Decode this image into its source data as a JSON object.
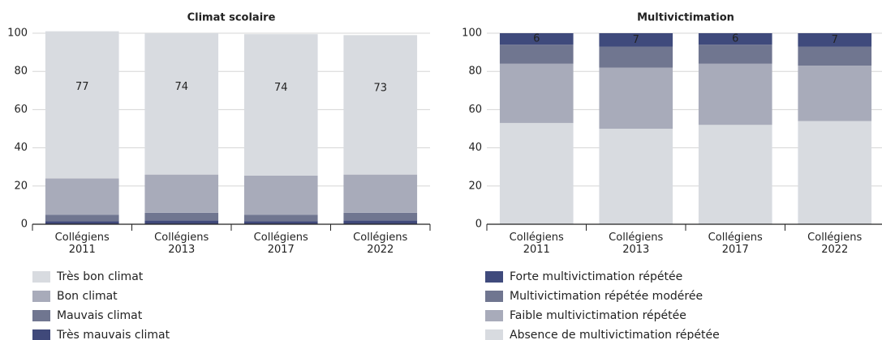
{
  "chart_data": [
    {
      "type": "bar",
      "stacked": true,
      "title": "Climat scolaire",
      "categories": [
        "Collégiens\n2011",
        "Collégiens\n2013",
        "Collégiens\n2017",
        "Collégiens\n2022"
      ],
      "ylim": [
        0,
        100
      ],
      "yticks": [
        0,
        20,
        40,
        60,
        80,
        100
      ],
      "grid": true,
      "series": [
        {
          "name": "Très mauvais climat",
          "color": "#40497a",
          "values": [
            1.5,
            2,
            1.5,
            2
          ]
        },
        {
          "name": "Mauvais climat",
          "color": "#707690",
          "values": [
            3.5,
            4,
            3.5,
            4
          ]
        },
        {
          "name": "Bon climat",
          "color": "#a8abba",
          "values": [
            19,
            20,
            20.5,
            20
          ]
        },
        {
          "name": "Très bon climat",
          "color": "#d8dbe0",
          "values": [
            77,
            74,
            74,
            73
          ],
          "show_values": true
        }
      ]
    },
    {
      "type": "bar",
      "stacked": true,
      "title": "Multivictimation",
      "categories": [
        "Collégiens\n2011",
        "Collégiens\n2013",
        "Collégiens\n2017",
        "Collégiens\n2022"
      ],
      "ylim": [
        0,
        100
      ],
      "yticks": [
        0,
        20,
        40,
        60,
        80,
        100
      ],
      "grid": true,
      "series": [
        {
          "name": "Absence de multivictimation répétée",
          "color": "#d8dbe0",
          "values": [
            53,
            50,
            52,
            54
          ]
        },
        {
          "name": "Faible multivictimation répétée",
          "color": "#a8abba",
          "values": [
            31,
            32,
            32,
            29
          ]
        },
        {
          "name": "Multivictimation répétée modérée",
          "color": "#707690",
          "values": [
            10,
            11,
            10,
            10
          ]
        },
        {
          "name": "Forte multivictimation répétée",
          "color": "#3f4a7c",
          "values": [
            6,
            7,
            6,
            7
          ],
          "show_values": true
        }
      ]
    }
  ]
}
